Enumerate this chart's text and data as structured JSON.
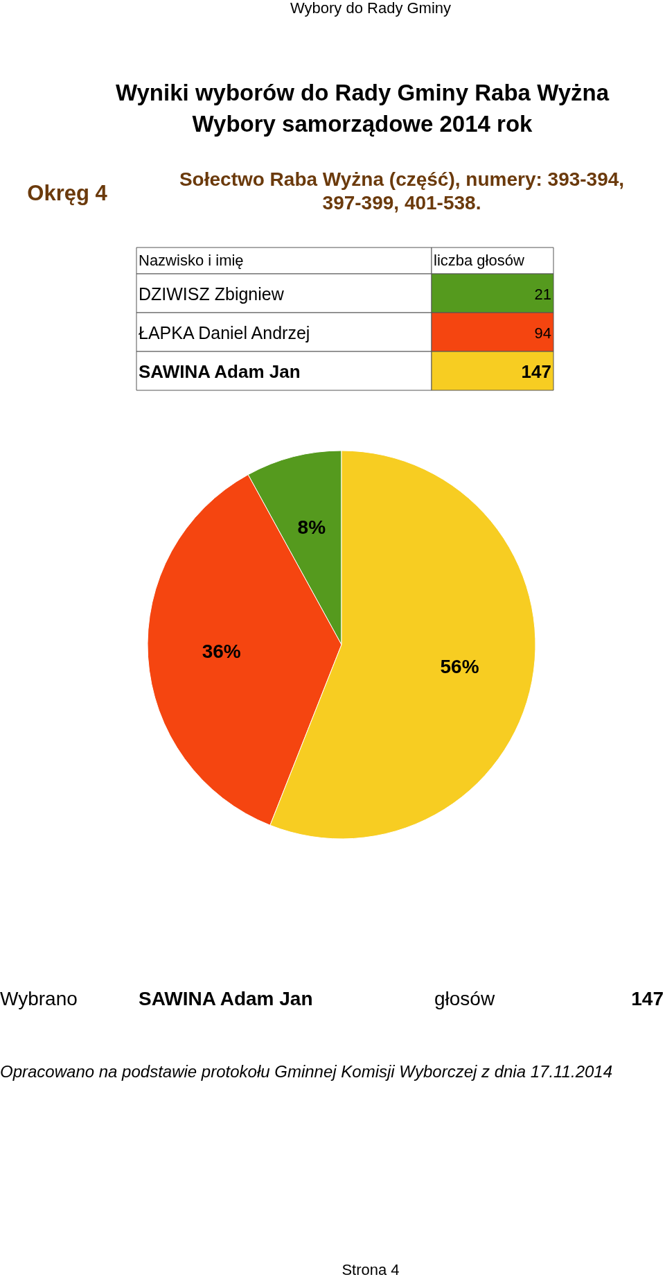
{
  "chart_data": {
    "type": "pie",
    "title": "Wyniki wyborów do Rady Gminy Raba Wyżna",
    "subtitle": "Wybory samorządowe 2014 rok",
    "categories": [
      null,
      null,
      null
    ],
    "values": [
      8,
      36,
      56
    ],
    "colors": [
      "#559a1e",
      "#f54510",
      "#f7cd22"
    ],
    "value_labels": [
      "8%",
      "36%",
      "56%"
    ],
    "annotations": [
      "Wybory do Rady Gminy",
      "Okręg 4",
      "Sołectwo Raba Wyżna (część), numery: 393-394, 397-399, 401-538.",
      "Nazwisko i imię",
      "liczba głosów",
      "Wybrano",
      "głosów",
      "Opracowano na podstawie protokołu Gminnej Komisji Wyborczej z dnia 17.11.2014",
      "Strona 4",
      "DZIWISZ Zbigniew",
      "21",
      "ŁAPKA Daniel Andrzej",
      "94",
      "SAWINA Adam Jan",
      "147",
      "SAWINA Adam Jan",
      "147"
    ]
  }
}
